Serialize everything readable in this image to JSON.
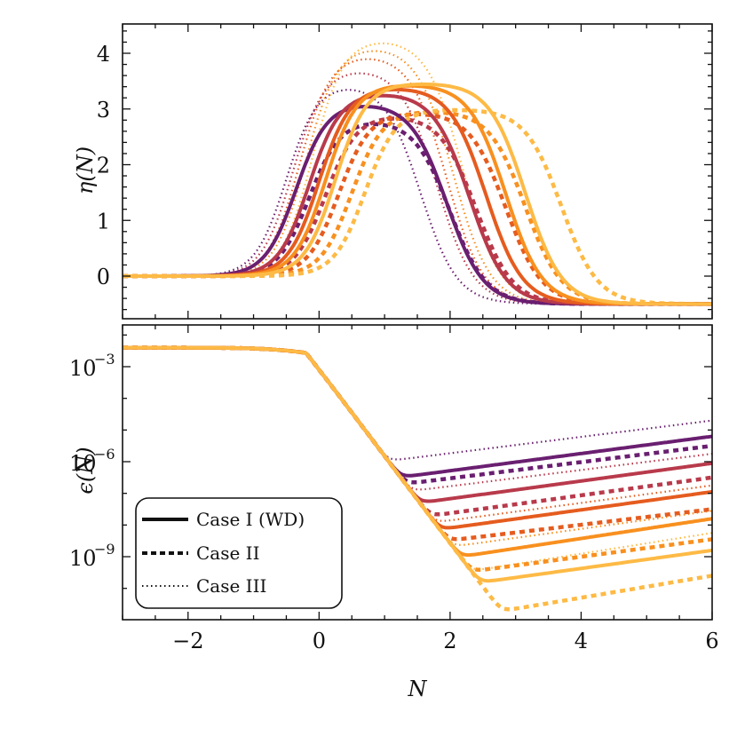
{
  "chart_data": [
    {
      "type": "line",
      "panel": "top",
      "ylabel": "η(N)",
      "xlabel": "",
      "xlim": [
        -3,
        6
      ],
      "ylim": [
        -0.7,
        4.5
      ],
      "yticks": [
        0,
        1,
        2,
        3,
        4
      ],
      "ytick_labels": [
        "0",
        "1",
        "2",
        "3",
        "4"
      ],
      "xticks": [
        -2,
        0,
        2,
        4,
        6
      ],
      "grid": false,
      "series": [
        {
          "name": "Case I (WD) #1",
          "style": "solid",
          "color": "#6a1f70",
          "peak_x": 0.65,
          "peak_y": 3.12,
          "drop_x": 1.95,
          "final": -0.5
        },
        {
          "name": "Case I (WD) #2",
          "style": "solid",
          "color": "#b83a4b",
          "peak_x": 0.85,
          "peak_y": 3.3,
          "drop_x": 2.3,
          "final": -0.5
        },
        {
          "name": "Case I (WD) #3",
          "style": "solid",
          "color": "#e55c1f",
          "peak_x": 1.0,
          "peak_y": 3.4,
          "drop_x": 2.55,
          "final": -0.5
        },
        {
          "name": "Case I (WD) #4",
          "style": "solid",
          "color": "#f8901f",
          "peak_x": 1.1,
          "peak_y": 3.45,
          "drop_x": 2.85,
          "final": -0.5
        },
        {
          "name": "Case I (WD) #5",
          "style": "solid",
          "color": "#fdba45",
          "peak_x": 1.25,
          "peak_y": 3.47,
          "drop_x": 3.15,
          "final": -0.5
        },
        {
          "name": "Case II #1",
          "style": "dashed",
          "color": "#6a1f70",
          "peak_x": 0.85,
          "peak_y": 2.82,
          "drop_x": 2.0,
          "final": -0.5
        },
        {
          "name": "Case II #2",
          "style": "dashed",
          "color": "#b83a4b",
          "peak_x": 1.1,
          "peak_y": 2.9,
          "drop_x": 2.4,
          "final": -0.5
        },
        {
          "name": "Case II #3",
          "style": "dashed",
          "color": "#e55c1f",
          "peak_x": 1.3,
          "peak_y": 2.95,
          "drop_x": 2.85,
          "final": -0.5
        },
        {
          "name": "Case II #4",
          "style": "dashed",
          "color": "#f8901f",
          "peak_x": 1.5,
          "peak_y": 2.98,
          "drop_x": 3.15,
          "final": -0.5
        },
        {
          "name": "Case II #5",
          "style": "dashed",
          "color": "#fdba45",
          "peak_x": 1.7,
          "peak_y": 3.0,
          "drop_x": 3.7,
          "final": -0.5
        },
        {
          "name": "Case III #1",
          "style": "dotted",
          "color": "#6a1f70",
          "peak_x": 0.5,
          "peak_y": 3.48,
          "drop_x": 1.55,
          "final": -0.5
        },
        {
          "name": "Case III #2",
          "style": "dotted",
          "color": "#b83a4b",
          "peak_x": 0.6,
          "peak_y": 3.75,
          "drop_x": 1.8,
          "final": -0.5
        },
        {
          "name": "Case III #3",
          "style": "dotted",
          "color": "#e55c1f",
          "peak_x": 0.7,
          "peak_y": 4.0,
          "drop_x": 1.95,
          "final": -0.5
        },
        {
          "name": "Case III #4",
          "style": "dotted",
          "color": "#f8901f",
          "peak_x": 0.8,
          "peak_y": 4.15,
          "drop_x": 2.05,
          "final": -0.5
        },
        {
          "name": "Case III #5",
          "style": "dotted",
          "color": "#fdba45",
          "peak_x": 0.9,
          "peak_y": 4.28,
          "drop_x": 2.2,
          "final": -0.5
        }
      ]
    },
    {
      "type": "line",
      "panel": "bottom",
      "ylabel": "ϵ(N)",
      "xlabel": "N",
      "xlim": [
        -3,
        6
      ],
      "yscale": "log",
      "ylim_log10": [
        -1.6,
        -10.9
      ],
      "yticks_log10": [
        -3,
        -6,
        -9
      ],
      "ytick_labels": [
        "10",
        "10",
        "10"
      ],
      "ytick_exponents": [
        "−3",
        "−6",
        "−9"
      ],
      "xticks": [
        -2,
        0,
        2,
        4,
        6
      ],
      "xtick_labels": [
        "−2",
        "0",
        "2",
        "4",
        "6"
      ],
      "grid": false,
      "legend": {
        "position": "lower left",
        "entries": [
          {
            "label": "Case I (WD)",
            "style": "solid"
          },
          {
            "label": "Case II",
            "style": "dashed"
          },
          {
            "label": "Case III",
            "style": "dotted"
          }
        ]
      },
      "series": [
        {
          "name": "Case I (WD) #1",
          "style": "solid",
          "color": "#6a1f70",
          "min_x": 1.95,
          "min_log10": -6.3,
          "end_log10": -5.2
        },
        {
          "name": "Case I (WD) #2",
          "style": "solid",
          "color": "#b83a4b",
          "min_x": 2.25,
          "min_log10": -7.1,
          "end_log10": -6.05
        },
        {
          "name": "Case I (WD) #3",
          "style": "solid",
          "color": "#e55c1f",
          "min_x": 2.5,
          "min_log10": -7.95,
          "end_log10": -6.95
        },
        {
          "name": "Case I (WD) #4",
          "style": "solid",
          "color": "#f8901f",
          "min_x": 2.8,
          "min_log10": -8.8,
          "end_log10": -7.8
        },
        {
          "name": "Case I (WD) #5",
          "style": "solid",
          "color": "#fdba45",
          "min_x": 3.2,
          "min_log10": -9.6,
          "end_log10": -8.8
        },
        {
          "name": "Case II #1",
          "style": "dashed",
          "color": "#6a1f70",
          "min_x": 2.1,
          "min_log10": -6.5,
          "end_log10": -5.5
        },
        {
          "name": "Case II #2",
          "style": "dashed",
          "color": "#b83a4b",
          "min_x": 2.45,
          "min_log10": -7.5,
          "end_log10": -6.5
        },
        {
          "name": "Case II #3",
          "style": "dashed",
          "color": "#e55c1f",
          "min_x": 2.75,
          "min_log10": -8.3,
          "end_log10": -7.5
        },
        {
          "name": "Case II #4",
          "style": "dashed",
          "color": "#f8901f",
          "min_x": 3.1,
          "min_log10": -9.25,
          "end_log10": -8.45
        },
        {
          "name": "Case II #5",
          "style": "dashed",
          "color": "#fdba45",
          "min_x": 3.7,
          "min_log10": -10.4,
          "end_log10": -9.6
        },
        {
          "name": "Case III #1",
          "style": "dotted",
          "color": "#6a1f70",
          "min_x": 1.55,
          "min_log10": -5.85,
          "end_log10": -4.7
        },
        {
          "name": "Case III #2",
          "style": "dotted",
          "color": "#b83a4b",
          "min_x": 1.9,
          "min_log10": -6.8,
          "end_log10": -5.75
        },
        {
          "name": "Case III #3",
          "style": "dotted",
          "color": "#e55c1f",
          "min_x": 2.2,
          "min_log10": -7.8,
          "end_log10": -6.75
        },
        {
          "name": "Case III #4",
          "style": "dotted",
          "color": "#f8901f",
          "min_x": 2.5,
          "min_log10": -8.55,
          "end_log10": -7.55
        },
        {
          "name": "Case III #5",
          "style": "dotted",
          "color": "#fdba45",
          "min_x": 2.8,
          "min_log10": -9.3,
          "end_log10": -8.25
        }
      ],
      "plateau_log10": -2.4
    }
  ],
  "labels": {
    "top_ylabel": "η(N)",
    "bottom_ylabel": "ϵ(N)",
    "xlabel": "N",
    "legend_case1": "Case I (WD)",
    "legend_case2": "Case II",
    "legend_case3": "Case III"
  }
}
